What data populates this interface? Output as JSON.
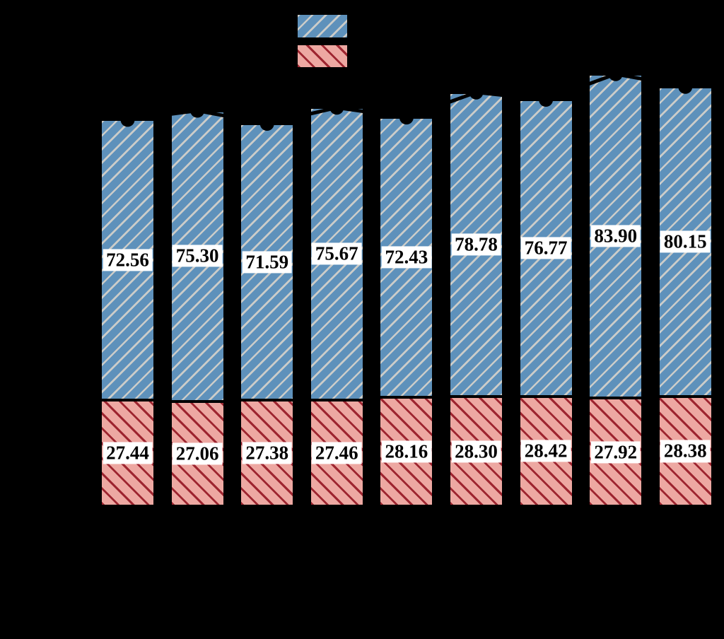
{
  "figure": {
    "background_color": "#000000",
    "note": "axis, tick, title and legend text are rendered black on black (not visible)",
    "axis_text_visible": false
  },
  "legend": {
    "position": "top-center",
    "entries": [
      {
        "name": "blue-series-swatch",
        "fill": "#5e91bb",
        "hatch": "/",
        "hatch_color": "#cbccc9"
      },
      {
        "name": "red-series-swatch",
        "fill": "#eda8a2",
        "hatch": "\\",
        "hatch_color": "#9e2530"
      }
    ]
  },
  "chart_data": {
    "type": "bar",
    "stacked": true,
    "n_bars": 9,
    "categories": [
      "",
      "",
      "",
      "",
      "",
      "",
      "",
      "",
      ""
    ],
    "title": "",
    "xlabel": "",
    "ylabel": "",
    "grid": false,
    "series": [
      {
        "name": "upper-blue-segment",
        "fill": "#5e91bb",
        "hatch": "/",
        "hatch_color": "#cbccc9",
        "values": [
          72.56,
          75.3,
          71.59,
          75.67,
          72.43,
          78.78,
          76.77,
          83.9,
          80.15
        ]
      },
      {
        "name": "lower-red-segment",
        "fill": "#eda8a2",
        "hatch": "\\",
        "hatch_color": "#9e2530",
        "values": [
          27.44,
          27.06,
          27.38,
          27.46,
          28.16,
          28.3,
          28.42,
          27.92,
          28.38
        ]
      }
    ],
    "stack_totals": [
      100.0,
      102.36,
      98.97,
      103.13,
      100.59,
      107.08,
      105.19,
      111.82,
      108.53
    ],
    "bar_value_labels": {
      "visible": true,
      "decimals": 2,
      "text_color": "#000000",
      "box_color": "#ffffff"
    },
    "line_overlay": {
      "type": "line",
      "on": "stack-totals",
      "marker": "circle",
      "color": "#000000"
    }
  }
}
